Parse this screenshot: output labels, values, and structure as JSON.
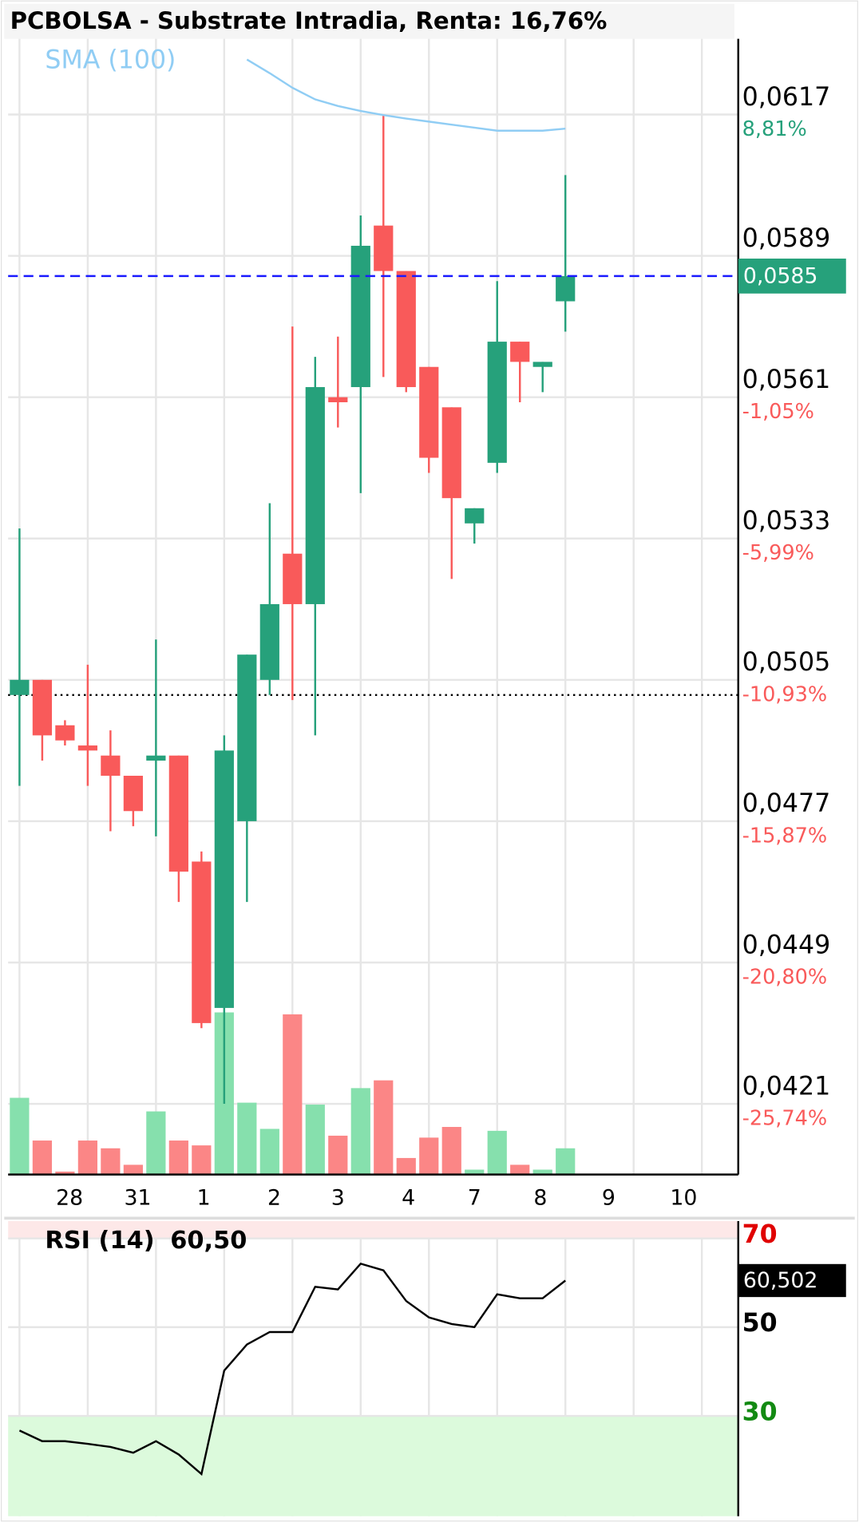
{
  "chart_data": {
    "type": "candlestick",
    "title": "PCBOLSA - Substrate Intradia, Renta: 16,76%",
    "xlim": [
      -0.5,
      31.6
    ],
    "xticks": [
      {
        "value": 2.2,
        "label": "28"
      },
      {
        "value": 5.2,
        "label": "31"
      },
      {
        "value": 8.1,
        "label": "1"
      },
      {
        "value": 11.2,
        "label": "2"
      },
      {
        "value": 14.0,
        "label": "3"
      },
      {
        "value": 17.1,
        "label": "4"
      },
      {
        "value": 20.0,
        "label": "7"
      },
      {
        "value": 22.9,
        "label": "8"
      },
      {
        "value": 25.9,
        "label": "9"
      },
      {
        "value": 29.2,
        "label": "10"
      }
    ],
    "xgrid": [
      0,
      3,
      6,
      9,
      12,
      15,
      18,
      21,
      24,
      27,
      30
    ],
    "ylim": [
      0.0407,
      0.0632
    ],
    "yticks": [
      {
        "value": 0.0617,
        "label": "0,0617"
      },
      {
        "value": 0.0589,
        "label": "0,0589"
      },
      {
        "value": 0.0561,
        "label": "0,0561"
      },
      {
        "value": 0.0533,
        "label": "0,0533"
      },
      {
        "value": 0.0505,
        "label": "0,0505"
      },
      {
        "value": 0.0477,
        "label": "0,0477"
      },
      {
        "value": 0.0449,
        "label": "0,0449"
      },
      {
        "value": 0.0421,
        "label": "0,0421"
      }
    ],
    "ytick_pct": [
      {
        "value": 8.81,
        "label": "8,81%"
      },
      null,
      {
        "value": -1.05,
        "label": "-1,05%"
      },
      {
        "value": -5.99,
        "label": "-5,99%"
      },
      {
        "value": -10.93,
        "label": "-10,93%"
      },
      {
        "value": -15.87,
        "label": "-15,87%"
      },
      {
        "value": -20.8,
        "label": "-20,80%"
      },
      {
        "value": -25.74,
        "label": "-25,74%"
      }
    ],
    "grid": true,
    "up_color": "#26a17b",
    "down_color": "#f95a5a",
    "volume_up_color": "#86e0ad",
    "volume_down_color": "#fb8686",
    "open": [
      0.0502,
      0.0505,
      0.0496,
      0.0492,
      0.049,
      0.0486,
      0.0489,
      0.049,
      0.0469,
      0.044,
      0.0477,
      0.0505,
      0.053,
      0.052,
      0.0561,
      0.0563,
      0.0595,
      0.0586,
      0.0567,
      0.0559,
      0.0536,
      0.0548,
      0.0572,
      0.0567,
      0.058
    ],
    "high": [
      0.0535,
      0.0505,
      0.0497,
      0.0508,
      0.0495,
      0.0486,
      0.0513,
      0.049,
      0.0471,
      0.0494,
      0.051,
      0.054,
      0.0575,
      0.0569,
      0.0573,
      0.0597,
      0.0617,
      0.0586,
      0.0567,
      0.0559,
      0.0539,
      0.0584,
      0.0572,
      0.0568,
      0.0605
    ],
    "low": [
      0.0484,
      0.0489,
      0.0492,
      0.0484,
      0.0475,
      0.0476,
      0.0474,
      0.0461,
      0.0436,
      0.0421,
      0.0461,
      0.0502,
      0.0501,
      0.0494,
      0.0555,
      0.0542,
      0.0565,
      0.0562,
      0.0546,
      0.0525,
      0.0532,
      0.0546,
      0.056,
      0.0562,
      0.0574
    ],
    "close": [
      0.0505,
      0.0494,
      0.0493,
      0.0491,
      0.0486,
      0.0479,
      0.049,
      0.0467,
      0.0437,
      0.0491,
      0.051,
      0.052,
      0.052,
      0.0563,
      0.056,
      0.0591,
      0.0586,
      0.0563,
      0.0549,
      0.0541,
      0.0539,
      0.0572,
      0.0568,
      0.0568,
      0.0585
    ],
    "volume": [
      79,
      35,
      3,
      35,
      27,
      10,
      65,
      35,
      30,
      167,
      74,
      47,
      165,
      72,
      40,
      89,
      97,
      17,
      38,
      49,
      5,
      45,
      10,
      5,
      27
    ],
    "volume_lim": [
      0,
      1170
    ],
    "sma": {
      "name": "SMA (100)",
      "color": "#90cdf4",
      "values": [
        null,
        null,
        null,
        null,
        null,
        null,
        null,
        null,
        null,
        null,
        0.06279,
        0.06252,
        0.06223,
        0.062,
        0.06187,
        0.06177,
        0.06169,
        0.06162,
        0.06156,
        0.0615,
        0.06144,
        0.06138,
        0.06138,
        0.06138,
        0.06142
      ]
    },
    "last_price": {
      "value": 0.0585,
      "label": "0,0585"
    },
    "reference_price": 0.0502,
    "rsi": {
      "name": "RSI (14)",
      "last": {
        "value": 60.5,
        "label": "60,50"
      },
      "last_box": {
        "value": 60.502,
        "label": "60,502"
      },
      "ylim": [
        7.4,
        73.9
      ],
      "yticks": [
        70,
        50,
        30
      ],
      "ytick_colors": [
        "#e00000",
        "#000000",
        "#138a13"
      ],
      "values": [
        26.7,
        24.3,
        24.3,
        23.7,
        23.0,
        21.7,
        24.3,
        21.3,
        16.9,
        40.2,
        46.1,
        48.9,
        48.9,
        59.1,
        58.5,
        64.3,
        62.8,
        55.9,
        52.2,
        50.7,
        50.0,
        57.4,
        56.5,
        56.5,
        60.5
      ]
    }
  }
}
